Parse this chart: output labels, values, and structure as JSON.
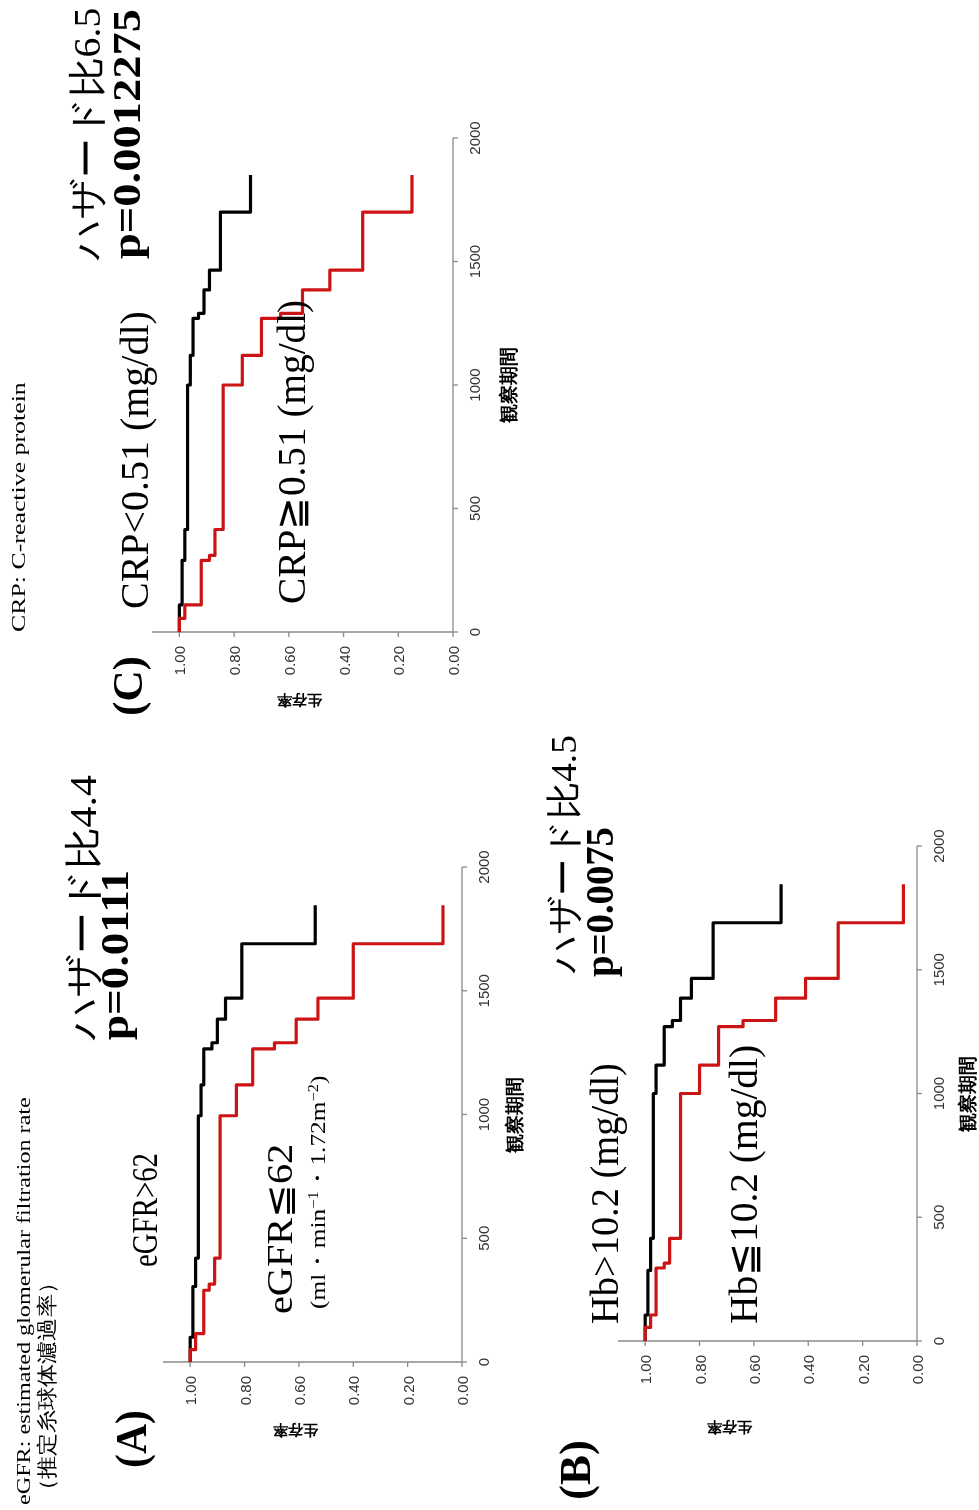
{
  "chart_data": [
    {
      "type": "line",
      "title": "(A)",
      "xlabel": "生存率",
      "ylabel": "観察期間",
      "xlim": [
        1.1,
        0
      ],
      "xticks": [
        {
          "value": 1,
          "label": "1.00"
        },
        {
          "value": 0.8,
          "label": "0.80"
        },
        {
          "value": 0.6,
          "label": "0.60"
        },
        {
          "value": 0.4,
          "label": "0.40"
        },
        {
          "value": 0.2,
          "label": "0.20"
        },
        {
          "value": 0,
          "label": "0.00"
        }
      ],
      "ylim": [
        0,
        2000
      ],
      "yticks": [
        0,
        500,
        1000,
        1500,
        2000
      ],
      "series": [
        {
          "name": "eGFR>62",
          "color": "#000000",
          "x": [
            1.0,
            1.0,
            0.99,
            0.99,
            0.98,
            0.98,
            0.97,
            0.97,
            0.96,
            0.96,
            0.95,
            0.95,
            0.92,
            0.92,
            0.9,
            0.9,
            0.87,
            0.87,
            0.81,
            0.81,
            0.54,
            0.54
          ],
          "values": [
            0,
            100,
            100,
            305,
            305,
            420,
            420,
            995,
            995,
            1120,
            1120,
            1265,
            1265,
            1290,
            1290,
            1385,
            1385,
            1470,
            1470,
            1690,
            1690,
            1845
          ]
        },
        {
          "name": "eGFR≦62",
          "color": "#cc1414",
          "x": [
            1.0,
            1.0,
            0.98,
            0.98,
            0.95,
            0.95,
            0.93,
            0.93,
            0.91,
            0.91,
            0.89,
            0.89,
            0.83,
            0.83,
            0.77,
            0.77,
            0.69,
            0.69,
            0.61,
            0.61,
            0.53,
            0.53,
            0.4,
            0.4,
            0.07,
            0.07
          ],
          "values": [
            0,
            50,
            50,
            115,
            115,
            290,
            290,
            315,
            315,
            420,
            420,
            995,
            995,
            1120,
            1120,
            1265,
            1265,
            1290,
            1290,
            1385,
            1385,
            1470,
            1470,
            1690,
            1690,
            1845
          ]
        }
      ],
      "annotations": [
        "(ml・min$^{−1}$・1.72m$^{−2}$)",
        "ハザード比4.4",
        "p=0.0111",
        "eGFR: estimated glomerular filtration rate",
        "（推定糸球体濾過率）"
      ]
    },
    {
      "type": "line",
      "title": "(C)",
      "xlabel": "生存率",
      "ylabel": "観察期間",
      "xlim": [
        1.1,
        0
      ],
      "xticks": [
        {
          "value": 1,
          "label": "1.00"
        },
        {
          "value": 0.8,
          "label": "0.80"
        },
        {
          "value": 0.6,
          "label": "0.60"
        },
        {
          "value": 0.4,
          "label": "0.40"
        },
        {
          "value": 0.2,
          "label": "0.20"
        },
        {
          "value": 0,
          "label": "0.00"
        }
      ],
      "ylim": [
        0,
        2000
      ],
      "yticks": [
        0,
        500,
        1000,
        1500,
        2000
      ],
      "series": [
        {
          "name": "CRP<0.51 (mg/dl)",
          "color": "#000000",
          "x": [
            1.0,
            1.0,
            0.99,
            0.99,
            0.98,
            0.98,
            0.97,
            0.97,
            0.96,
            0.96,
            0.95,
            0.95,
            0.93,
            0.93,
            0.91,
            0.91,
            0.89,
            0.89,
            0.85,
            0.85,
            0.74,
            0.74
          ],
          "values": [
            0,
            110,
            110,
            290,
            290,
            415,
            415,
            1000,
            1000,
            1120,
            1120,
            1270,
            1270,
            1290,
            1290,
            1385,
            1385,
            1465,
            1465,
            1700,
            1700,
            1850
          ]
        },
        {
          "name": "CRP≧0.51 (mg/dl)",
          "color": "#cc1414",
          "x": [
            1.0,
            1.0,
            0.98,
            0.98,
            0.92,
            0.92,
            0.89,
            0.89,
            0.87,
            0.87,
            0.84,
            0.84,
            0.77,
            0.77,
            0.7,
            0.7,
            0.63,
            0.63,
            0.55,
            0.55,
            0.45,
            0.45,
            0.33,
            0.33,
            0.15,
            0.15
          ],
          "values": [
            0,
            55,
            55,
            110,
            110,
            290,
            290,
            310,
            310,
            415,
            415,
            1000,
            1000,
            1120,
            1120,
            1270,
            1270,
            1290,
            1290,
            1385,
            1385,
            1465,
            1465,
            1700,
            1700,
            1850
          ]
        }
      ],
      "annotations": [
        "ハザード比6.5",
        "p=0.0012275",
        "CRP: C-reactive protein"
      ]
    },
    {
      "type": "line",
      "title": "(B)",
      "xlabel": "生存率",
      "ylabel": "観察期間",
      "xlim": [
        1.1,
        0
      ],
      "xticks": [
        {
          "value": 1,
          "label": "1.00"
        },
        {
          "value": 0.8,
          "label": "0.80"
        },
        {
          "value": 0.6,
          "label": "0.60"
        },
        {
          "value": 0.4,
          "label": "0.40"
        },
        {
          "value": 0.2,
          "label": "0.20"
        },
        {
          "value": 0,
          "label": "0.00"
        }
      ],
      "ylim": [
        0,
        2000
      ],
      "yticks": [
        0,
        500,
        1000,
        1500,
        2000
      ],
      "series": [
        {
          "name": "Hb>10.2 (mg/dl)",
          "color": "#000000",
          "x": [
            1.0,
            1.0,
            0.99,
            0.99,
            0.98,
            0.98,
            0.97,
            0.97,
            0.96,
            0.96,
            0.93,
            0.93,
            0.9,
            0.9,
            0.87,
            0.87,
            0.83,
            0.83,
            0.75,
            0.75,
            0.5,
            0.5
          ],
          "values": [
            0,
            105,
            105,
            285,
            285,
            415,
            415,
            1000,
            1000,
            1115,
            1115,
            1270,
            1270,
            1295,
            1295,
            1385,
            1385,
            1465,
            1465,
            1690,
            1690,
            1845
          ]
        },
        {
          "name": "Hb≦10.2 (mg/dl)",
          "color": "#cc1414",
          "x": [
            1.0,
            1.0,
            0.98,
            0.98,
            0.96,
            0.96,
            0.93,
            0.93,
            0.91,
            0.91,
            0.87,
            0.87,
            0.8,
            0.8,
            0.73,
            0.73,
            0.64,
            0.64,
            0.52,
            0.52,
            0.41,
            0.41,
            0.29,
            0.29,
            0.05,
            0.05
          ],
          "values": [
            0,
            55,
            55,
            105,
            105,
            295,
            295,
            315,
            315,
            415,
            415,
            1000,
            1000,
            1115,
            1115,
            1270,
            1270,
            1295,
            1295,
            1385,
            1385,
            1465,
            1465,
            1690,
            1690,
            1845
          ]
        }
      ],
      "annotations": [
        "ハザード比4.5",
        "p=0.0075"
      ]
    }
  ]
}
